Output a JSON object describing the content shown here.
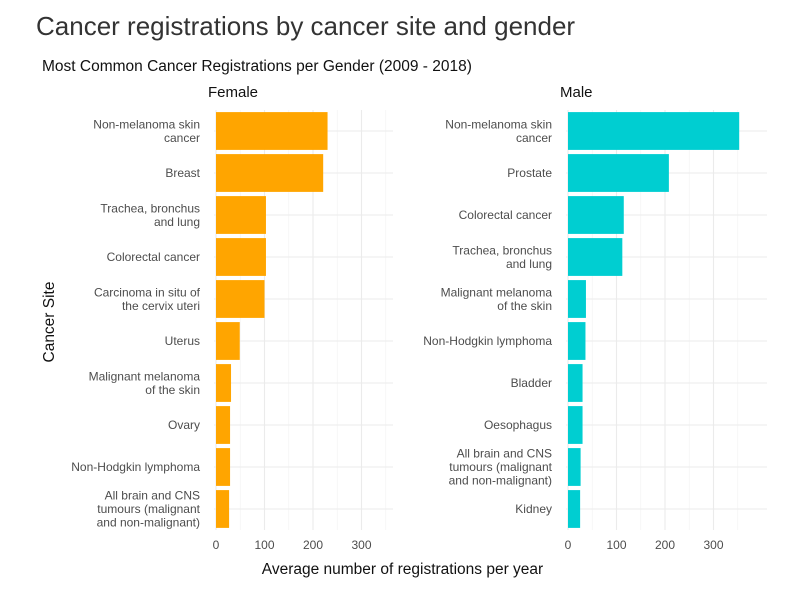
{
  "chart_title": "Cancer registrations by cancer site and gender",
  "chart_subtitle": "Most Common Cancer Registrations per Gender (2009 - 2018)",
  "y_axis_label": "Cancer Site",
  "x_axis_label": "Average number of registrations per year",
  "chart_data": {
    "type": "bar",
    "orientation": "horizontal",
    "title": "Cancer registrations by cancer site and gender",
    "subtitle": "Most Common Cancer Registrations per Gender (2009 - 2018)",
    "xlabel": "Average number of registrations per year",
    "ylabel": "Cancer Site",
    "xlim": [
      0,
      380
    ],
    "xticks": [
      0,
      100,
      200,
      300
    ],
    "grid": true,
    "legend": "none",
    "facets": [
      {
        "name": "Female",
        "color": "#FFA500",
        "categories": [
          "Non-melanoma skin\ncancer",
          "Breast",
          "Trachea, bronchus\nand lung",
          "Colorectal cancer",
          "Carcinoma in situ of\nthe cervix uteri",
          "Uterus",
          "Malignant melanoma\nof the skin",
          "Ovary",
          "Non-Hodgkin lymphoma",
          "All brain and CNS\ntumours (malignant\nand non-malignant)"
        ],
        "values": [
          230,
          221,
          103,
          103,
          100,
          49,
          31,
          29,
          29,
          27
        ]
      },
      {
        "name": "Male",
        "color": "#00CED1",
        "categories": [
          "Non-melanoma skin\ncancer",
          "Prostate",
          "Colorectal cancer",
          "Trachea, bronchus\nand lung",
          "Malignant melanoma\nof the skin",
          "Non-Hodgkin lymphoma",
          "Bladder",
          "Oesophagus",
          "All brain and CNS\ntumours (malignant\nand non-malignant)",
          "Kidney"
        ],
        "values": [
          353,
          208,
          115,
          112,
          37,
          36,
          30,
          30,
          26,
          25
        ]
      }
    ]
  }
}
